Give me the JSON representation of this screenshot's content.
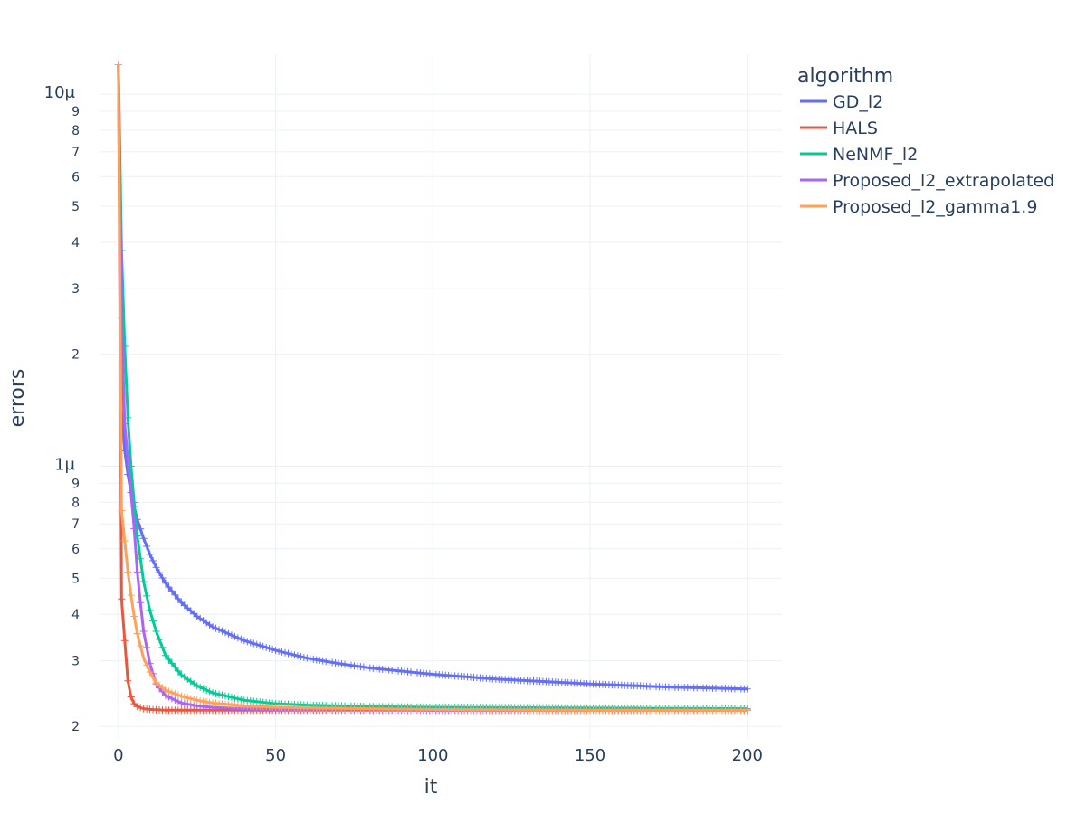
{
  "chart_data": {
    "type": "line",
    "xlabel": "it",
    "ylabel": "errors",
    "legend_title": "algorithm",
    "legend_position": "top-right",
    "grid": true,
    "x_scale": "linear",
    "y_scale": "log",
    "xlim": [
      -6,
      211
    ],
    "ylim": [
      1.85e-07,
      1.28e-05
    ],
    "x_ticks": [
      0,
      50,
      100,
      150,
      200
    ],
    "x_tick_labels": [
      "0",
      "50",
      "100",
      "150",
      "200"
    ],
    "y_major_ticks": [
      {
        "value": 1e-06,
        "label": "1μ"
      },
      {
        "value": 1e-05,
        "label": "10μ"
      }
    ],
    "y_minor_ticks": [
      {
        "value": 2e-07,
        "label": "2"
      },
      {
        "value": 3e-07,
        "label": "3"
      },
      {
        "value": 4e-07,
        "label": "4"
      },
      {
        "value": 5e-07,
        "label": "5"
      },
      {
        "value": 6e-07,
        "label": "6"
      },
      {
        "value": 7e-07,
        "label": "7"
      },
      {
        "value": 8e-07,
        "label": "8"
      },
      {
        "value": 9e-07,
        "label": "9"
      },
      {
        "value": 2e-06,
        "label": "2"
      },
      {
        "value": 3e-06,
        "label": "3"
      },
      {
        "value": 4e-06,
        "label": "4"
      },
      {
        "value": 5e-06,
        "label": "5"
      },
      {
        "value": 6e-06,
        "label": "6"
      },
      {
        "value": 7e-06,
        "label": "7"
      },
      {
        "value": 8e-06,
        "label": "8"
      },
      {
        "value": 9e-06,
        "label": "9"
      }
    ],
    "marker": "cross",
    "series": [
      {
        "name": "GD_l2",
        "color": "#636efa",
        "x": [
          0,
          1,
          2,
          3,
          4,
          5,
          6,
          8,
          10,
          12,
          15,
          20,
          25,
          30,
          40,
          50,
          60,
          70,
          80,
          100,
          120,
          150,
          175,
          200
        ],
        "y": [
          1.2e-05,
          1.4e-06,
          1.1e-06,
          9.5e-07,
          8.5e-07,
          7.8e-07,
          7.2e-07,
          6.4e-07,
          5.8e-07,
          5.35e-07,
          4.85e-07,
          4.3e-07,
          3.95e-07,
          3.7e-07,
          3.4e-07,
          3.2e-07,
          3.05e-07,
          2.95e-07,
          2.87e-07,
          2.76e-07,
          2.68e-07,
          2.6e-07,
          2.55e-07,
          2.52e-07
        ]
      },
      {
        "name": "HALS",
        "color": "#ef553b",
        "x": [
          0,
          1,
          2,
          3,
          4,
          5,
          6,
          8,
          10,
          15,
          20,
          30,
          50,
          100,
          150,
          200
        ],
        "y": [
          1.2e-05,
          4.4e-07,
          3.4e-07,
          2.65e-07,
          2.4e-07,
          2.3e-07,
          2.26e-07,
          2.23e-07,
          2.22e-07,
          2.21e-07,
          2.21e-07,
          2.21e-07,
          2.21e-07,
          2.21e-07,
          2.21e-07,
          2.21e-07
        ]
      },
      {
        "name": "NeNMF_l2",
        "color": "#00cc96",
        "x": [
          0,
          1,
          2,
          3,
          4,
          5,
          6,
          8,
          10,
          12,
          15,
          20,
          25,
          30,
          40,
          50,
          60,
          80,
          100,
          150,
          200
        ],
        "y": [
          1.2e-05,
          3.8e-06,
          2.1e-06,
          1.35e-06,
          1e-06,
          8e-07,
          6.5e-07,
          4.9e-07,
          4.1e-07,
          3.6e-07,
          3.1e-07,
          2.75e-07,
          2.57e-07,
          2.46e-07,
          2.35e-07,
          2.3e-07,
          2.28e-07,
          2.26e-07,
          2.25e-07,
          2.24e-07,
          2.23e-07
        ]
      },
      {
        "name": "Proposed_l2_extrapolated",
        "color": "#ab63fa",
        "x": [
          0,
          1,
          2,
          3,
          4,
          5,
          6,
          7,
          8,
          10,
          12,
          15,
          20,
          25,
          30,
          40,
          50,
          100,
          150,
          200
        ],
        "y": [
          1.2e-05,
          2.5e-06,
          1.3e-06,
          1.05e-06,
          8.5e-07,
          6.8e-07,
          5.2e-07,
          4.3e-07,
          3.6e-07,
          2.95e-07,
          2.6e-07,
          2.42e-07,
          2.31e-07,
          2.27e-07,
          2.25e-07,
          2.23e-07,
          2.22e-07,
          2.21e-07,
          2.21e-07,
          2.21e-07
        ]
      },
      {
        "name": "Proposed_l2_gamma1.9",
        "color": "#ffa15a",
        "x": [
          0,
          1,
          2,
          3,
          4,
          5,
          6,
          8,
          10,
          12,
          15,
          20,
          25,
          30,
          40,
          50,
          60,
          80,
          100,
          150,
          200
        ],
        "y": [
          1.2e-05,
          7.6e-07,
          6.3e-07,
          5.2e-07,
          4.5e-07,
          3.95e-07,
          3.55e-07,
          3.05e-07,
          2.8e-07,
          2.62e-07,
          2.5e-07,
          2.41e-07,
          2.35e-07,
          2.31e-07,
          2.27e-07,
          2.25e-07,
          2.24e-07,
          2.23e-07,
          2.22e-07,
          2.21e-07,
          2.21e-07
        ]
      }
    ]
  }
}
